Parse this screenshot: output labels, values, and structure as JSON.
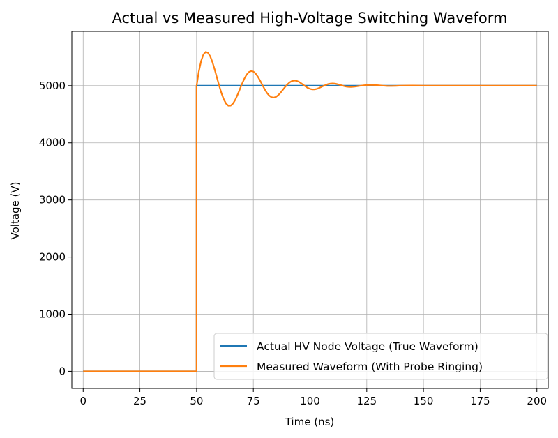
{
  "chart_data": {
    "type": "line",
    "title": "Actual vs Measured High-Voltage Switching Waveform",
    "xlabel": "Time (ns)",
    "ylabel": "Voltage (V)",
    "xlim": [
      -5,
      205
    ],
    "ylim": [
      -300,
      5950
    ],
    "xticks": [
      0,
      25,
      50,
      75,
      100,
      125,
      150,
      175,
      200
    ],
    "yticks": [
      0,
      1000,
      2000,
      3000,
      4000,
      5000
    ],
    "grid": true,
    "legend_position": "lower-right",
    "series": [
      {
        "name": "Actual HV Node Voltage (True Waveform)",
        "color": "#1f77b4",
        "x": [
          0,
          50,
          50,
          200
        ],
        "y": [
          0,
          0,
          5000,
          5000
        ]
      },
      {
        "name": "Measured Waveform (With Probe Ringing)",
        "color": "#ff7f0e",
        "x": [
          0,
          50,
          50,
          51,
          52,
          53,
          54,
          55,
          56,
          57,
          58,
          59,
          60,
          61,
          62,
          63,
          64,
          65,
          66,
          67,
          68,
          69,
          70,
          71,
          72,
          73,
          74,
          75,
          76,
          77,
          78,
          79,
          80,
          81,
          82,
          83,
          84,
          85,
          86,
          87,
          88,
          89,
          90,
          91,
          92,
          93,
          94,
          95,
          96,
          97,
          98,
          99,
          100,
          101,
          102,
          103,
          104,
          105,
          106,
          107,
          108,
          109,
          110,
          111,
          112,
          113,
          114,
          115,
          116,
          117,
          118,
          119,
          120,
          122,
          124,
          126,
          128,
          130,
          132,
          134,
          136,
          138,
          140,
          145,
          150,
          160,
          170,
          180,
          190,
          200
        ],
        "y": [
          0,
          0,
          5000,
          5253,
          5433,
          5545,
          5591,
          5577,
          5513,
          5409,
          5278,
          5135,
          4992,
          4864,
          4759,
          4686,
          4650,
          4651,
          4686,
          4750,
          4836,
          4933,
          5031,
          5120,
          5190,
          5237,
          5256,
          5247,
          5213,
          5157,
          5088,
          5012,
          4938,
          4874,
          4826,
          4798,
          4791,
          4804,
          4834,
          4877,
          4927,
          4977,
          5022,
          5058,
          5081,
          5090,
          5086,
          5070,
          5045,
          5016,
          4987,
          4961,
          4944,
          4935,
          4935,
          4944,
          4959,
          4978,
          4997,
          5015,
          5029,
          5037,
          5039,
          5036,
          5028,
          5017,
          5005,
          4993,
          4984,
          4979,
          4978,
          4981,
          4985,
          4997,
          5008,
          5014,
          5013,
          5007,
          5000,
          4995,
          4994,
          4996,
          5000,
          5002,
          5000,
          5000,
          5000,
          5000,
          5000,
          5000
        ]
      }
    ]
  }
}
